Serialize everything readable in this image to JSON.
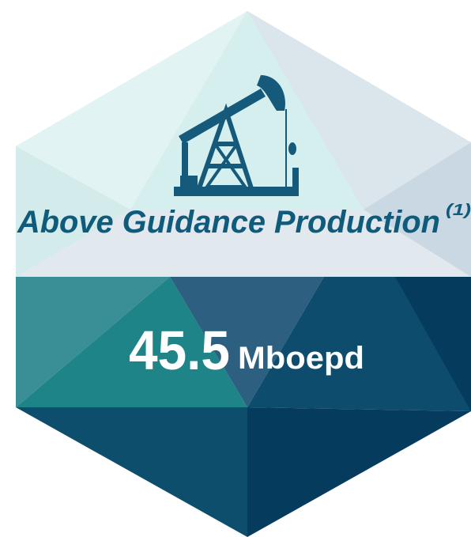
{
  "headline": {
    "title": "Above Guidance Production",
    "footnote": "(1)"
  },
  "metric": {
    "value": 45.5,
    "unit": "Mboepd"
  }
}
